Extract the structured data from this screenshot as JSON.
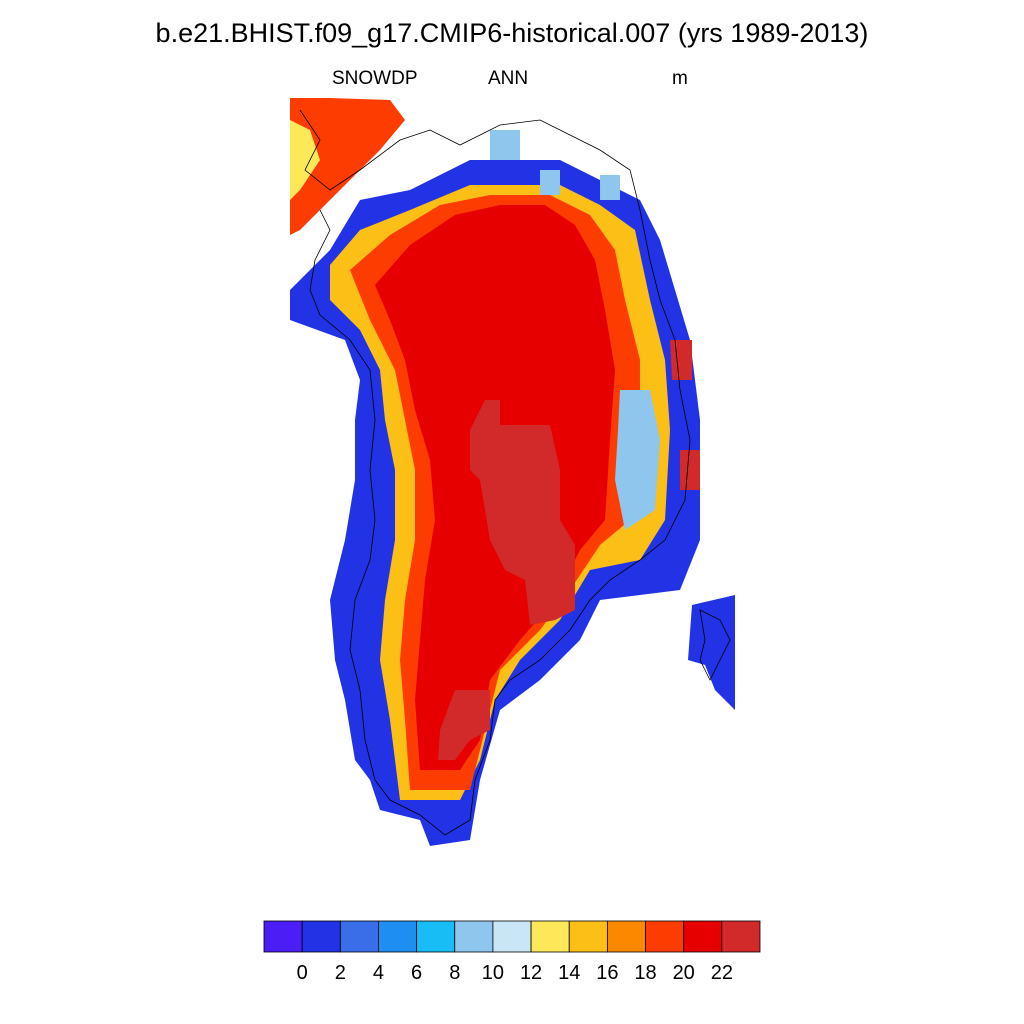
{
  "title": "b.e21.BHIST.f09_g17.CMIP6-historical.007 (yrs 1989-2013)",
  "subtitle": {
    "variable": "SNOWDP",
    "period": "ANN",
    "units": "m"
  },
  "colorbar": {
    "colors": [
      "#4a1ef5",
      "#2233e6",
      "#3a6ee8",
      "#1e8ef0",
      "#19bdf5",
      "#8ec6ee",
      "#c8e6f6",
      "#fde85a",
      "#fcbf16",
      "#fc8800",
      "#fc3c00",
      "#e60000",
      "#d22a2a"
    ],
    "tick_labels": [
      "0",
      "2",
      "4",
      "6",
      "8",
      "10",
      "12",
      "14",
      "16",
      "18",
      "20",
      "22"
    ]
  },
  "map": {
    "grid_cell_field": {
      "0_2": "#2233e6",
      "8_12": "#8ec6ee",
      "16_18": "#fc8800",
      "18_20": "#fc3c00",
      "20_22": "#e60000",
      "over_22": "#d22a2a"
    }
  }
}
